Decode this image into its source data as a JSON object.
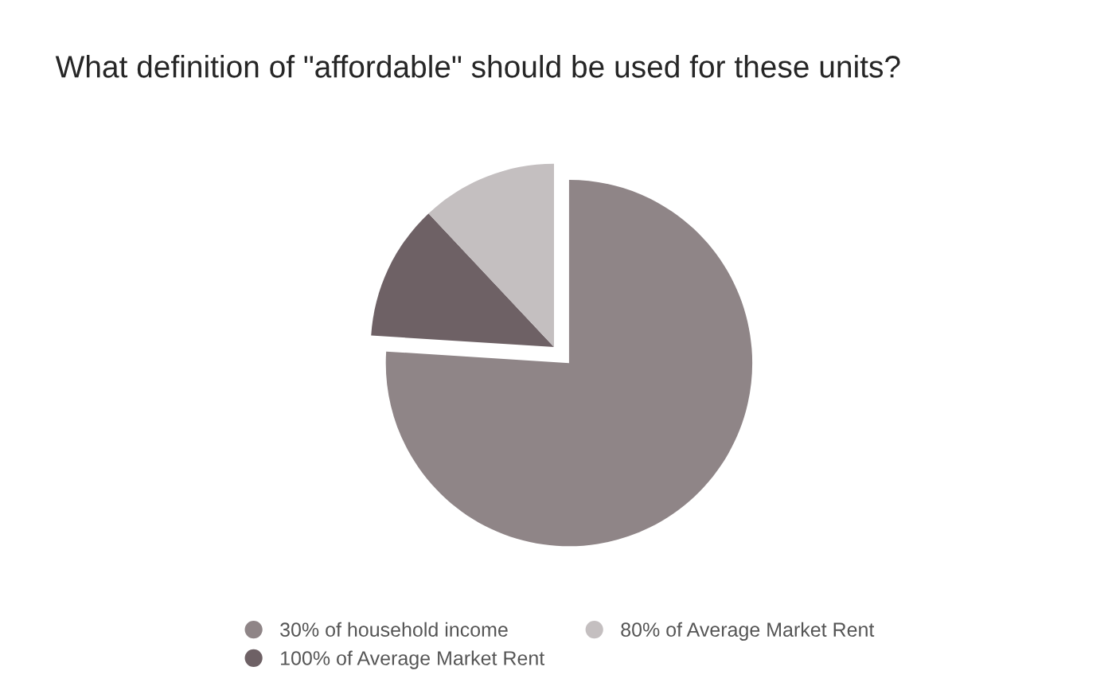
{
  "chart_data": {
    "type": "pie",
    "title": "What definition of \"affordable\" should be used for these units?",
    "categories": [
      "30% of household income",
      "100% of Average Market Rent",
      "80% of Average Market Rent"
    ],
    "values": [
      76,
      12,
      12
    ],
    "colors": [
      "#8f8587",
      "#6e6165",
      "#c4bfc0"
    ],
    "legend": "bottom"
  }
}
